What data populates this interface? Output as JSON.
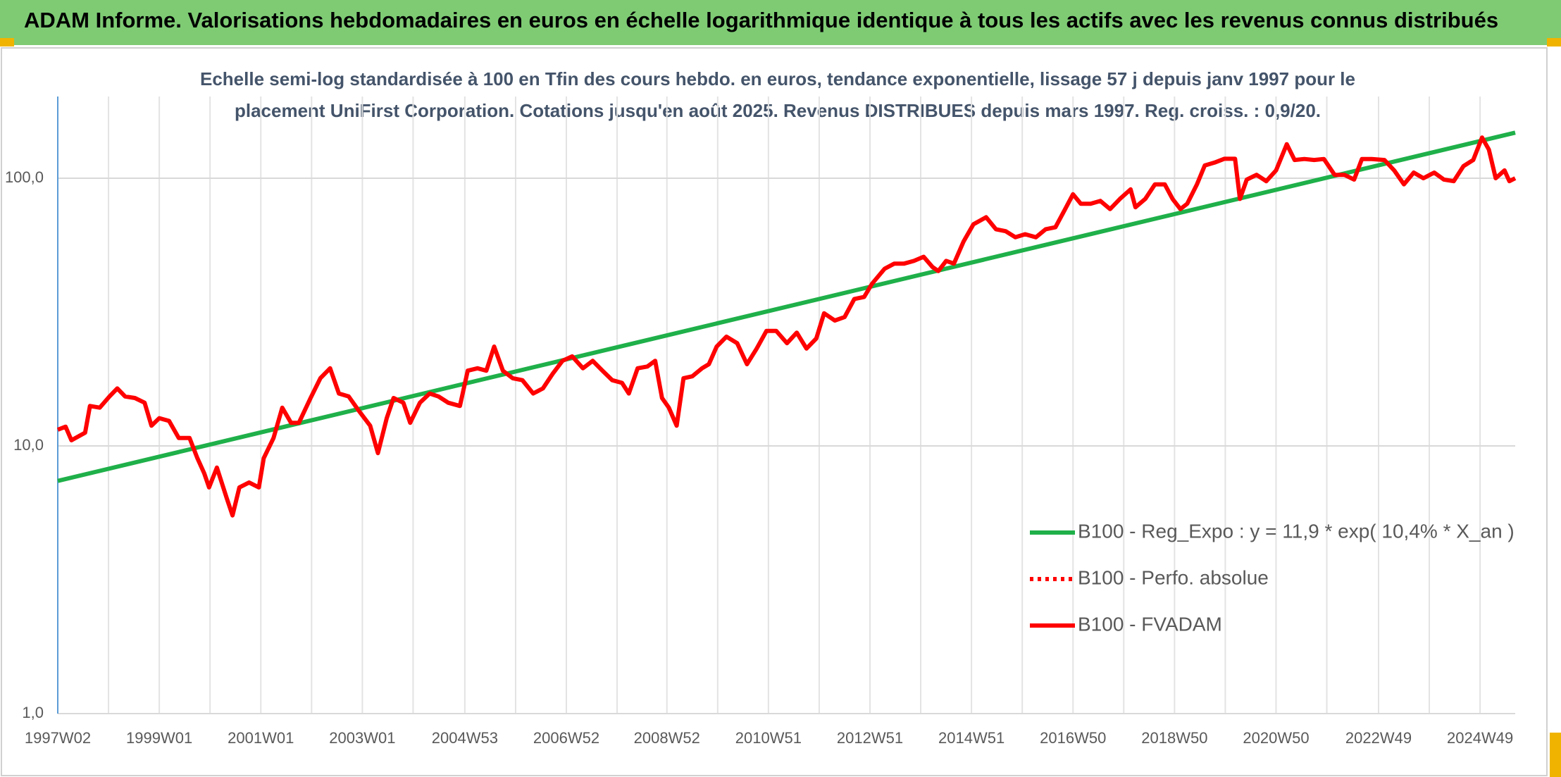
{
  "chart_data": {
    "type": "line",
    "title": "ADAM Informe. Valorisations hebdomadaires en euros en échelle logarithmique identique à tous les actifs avec les revenus connus distribués",
    "subtitle": [
      "Echelle semi-log standardisée à 100 en Tfin des cours hebdo. en euros, tendance exponentielle, lissage 57 j depuis janv 1997 pour le",
      "placement UniFirst Corporation. Cotations jusqu'en août 2025. Revenus DISTRIBUES depuis mars 1997. Reg. croiss. : 0,9/20."
    ],
    "log_y": true,
    "grid": true,
    "legend_position": "lower right",
    "xlim": [
      0,
      1493
    ],
    "xticks": [
      {
        "value": 0,
        "label": "1997W02"
      },
      {
        "value": 104,
        "label": "1999W01"
      },
      {
        "value": 208,
        "label": "2001W01"
      },
      {
        "value": 312,
        "label": "2003W01"
      },
      {
        "value": 417,
        "label": "2004W53"
      },
      {
        "value": 521,
        "label": "2006W52"
      },
      {
        "value": 624,
        "label": "2008W52"
      },
      {
        "value": 728,
        "label": "2010W51"
      },
      {
        "value": 832,
        "label": "2012W51"
      },
      {
        "value": 936,
        "label": "2014W51"
      },
      {
        "value": 1040,
        "label": "2016W50"
      },
      {
        "value": 1144,
        "label": "2018W50"
      },
      {
        "value": 1248,
        "label": "2020W50"
      },
      {
        "value": 1353,
        "label": "2022W49"
      },
      {
        "value": 1457,
        "label": "2024W49"
      }
    ],
    "xminorticks": [
      52,
      156,
      260,
      364,
      469,
      573,
      676,
      780,
      884,
      988,
      1092,
      1196,
      1300,
      1405
    ],
    "ylim": [
      1,
      202
    ],
    "yticks": [
      {
        "value": 1,
        "label": "1,0"
      },
      {
        "value": 10,
        "label": "10,0"
      },
      {
        "value": 100,
        "label": "100,0"
      }
    ],
    "series": [
      {
        "name": "B100 - Reg_Expo : y = 11,9 * exp( 10,4% *  X_an )",
        "color": "#1fb04a",
        "style": "solid",
        "x": [
          0,
          1493
        ],
        "values": [
          7.4,
          148
        ]
      },
      {
        "name": "B100 - Perfo. absolue",
        "color": "#ff0000",
        "style": "dotted",
        "x": [],
        "values": []
      },
      {
        "name": "B100 - FVADAM",
        "color": "#ff0000",
        "style": "solid",
        "x": [
          0,
          8,
          14,
          28,
          33,
          43,
          53,
          61,
          69,
          79,
          89,
          96,
          104,
          114,
          124,
          135,
          143,
          150,
          155,
          163,
          173,
          179,
          186,
          196,
          206,
          211,
          221,
          230,
          239,
          247,
          259,
          269,
          279,
          288,
          298,
          308,
          320,
          328,
          337,
          344,
          354,
          361,
          371,
          381,
          390,
          400,
          412,
          420,
          430,
          439,
          447,
          456,
          466,
          476,
          487,
          497,
          507,
          517,
          527,
          538,
          548,
          558,
          568,
          578,
          585,
          594,
          604,
          612,
          619,
          626,
          634,
          641,
          650,
          660,
          667,
          675,
          685,
          696,
          706,
          716,
          726,
          736,
          747,
          757,
          767,
          777,
          785,
          796,
          806,
          816,
          826,
          834,
          847,
          857,
          867,
          877,
          887,
          896,
          902,
          910,
          918,
          928,
          938,
          951,
          961,
          971,
          981,
          991,
          1002,
          1012,
          1022,
          1032,
          1040,
          1048,
          1058,
          1068,
          1078,
          1088,
          1099,
          1104,
          1114,
          1124,
          1134,
          1142,
          1150,
          1157,
          1167,
          1175,
          1185,
          1195,
          1206,
          1211,
          1218,
          1228,
          1238,
          1248,
          1259,
          1267,
          1277,
          1287,
          1297,
          1308,
          1318,
          1328,
          1336,
          1346,
          1359,
          1369,
          1379,
          1389,
          1399,
          1410,
          1420,
          1430,
          1440,
          1450,
          1459,
          1466,
          1473,
          1482,
          1487,
          1493
        ],
        "values": [
          11.5,
          11.8,
          10.5,
          11.2,
          14.1,
          13.9,
          15.3,
          16.4,
          15.3,
          15.1,
          14.5,
          11.9,
          12.7,
          12.4,
          10.7,
          10.7,
          9.0,
          7.9,
          7.0,
          8.3,
          6.4,
          5.5,
          7.0,
          7.3,
          7.0,
          9.0,
          10.7,
          13.9,
          12.2,
          12.2,
          15.1,
          17.9,
          19.5,
          15.7,
          15.3,
          13.6,
          11.9,
          9.4,
          12.7,
          15.1,
          14.5,
          12.2,
          14.5,
          15.7,
          15.3,
          14.5,
          14.1,
          19.1,
          19.5,
          19.1,
          23.5,
          19.1,
          17.9,
          17.6,
          15.7,
          16.4,
          18.6,
          20.8,
          21.6,
          19.5,
          20.8,
          19.1,
          17.6,
          17.2,
          15.7,
          19.5,
          19.8,
          20.8,
          15.1,
          13.9,
          11.9,
          17.9,
          18.2,
          19.5,
          20.2,
          23.5,
          25.6,
          24.2,
          20.2,
          23.1,
          26.9,
          26.9,
          24.2,
          26.5,
          23.1,
          25.2,
          31.3,
          29.4,
          30.3,
          35.4,
          36.0,
          40.3,
          45.9,
          48.0,
          48.0,
          49.1,
          50.9,
          46.6,
          45.0,
          49.1,
          48.0,
          58.1,
          67.3,
          71.5,
          64.5,
          63.4,
          60.2,
          61.8,
          60.2,
          64.5,
          65.6,
          76.7,
          87.1,
          80.3,
          80.3,
          82.3,
          76.7,
          83.7,
          90.9,
          77.9,
          83.7,
          94.9,
          94.9,
          83.7,
          76.7,
          80.3,
          94.9,
          111.6,
          114.4,
          118.2,
          118.2,
          83.7,
          98.9,
          103,
          97.5,
          107,
          134,
          117,
          118,
          117,
          118,
          103,
          103,
          98.9,
          118,
          118,
          117,
          107,
          94.9,
          105,
          100,
          105,
          98.9,
          97.5,
          111,
          117,
          142,
          128,
          100,
          107,
          97.5,
          100
        ]
      }
    ]
  }
}
